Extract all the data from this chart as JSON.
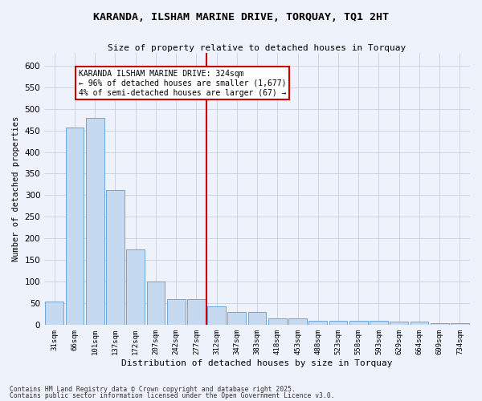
{
  "title": "KARANDA, ILSHAM MARINE DRIVE, TORQUAY, TQ1 2HT",
  "subtitle": "Size of property relative to detached houses in Torquay",
  "xlabel": "Distribution of detached houses by size in Torquay",
  "ylabel": "Number of detached properties",
  "categories": [
    "31sqm",
    "66sqm",
    "101sqm",
    "137sqm",
    "172sqm",
    "207sqm",
    "242sqm",
    "277sqm",
    "312sqm",
    "347sqm",
    "383sqm",
    "418sqm",
    "453sqm",
    "488sqm",
    "523sqm",
    "558sqm",
    "593sqm",
    "629sqm",
    "664sqm",
    "699sqm",
    "734sqm"
  ],
  "values": [
    54,
    456,
    479,
    312,
    175,
    100,
    59,
    59,
    42,
    30,
    30,
    15,
    15,
    9,
    9,
    9,
    9,
    8,
    8,
    3,
    3
  ],
  "bar_color": "#c5d9f1",
  "bar_edge_color": "#5b9bd5",
  "vline_x_index": 8,
  "vline_color": "#cc0000",
  "annotation_title": "KARANDA ILSHAM MARINE DRIVE: 324sqm",
  "annotation_line1": "← 96% of detached houses are smaller (1,677)",
  "annotation_line2": "4% of semi-detached houses are larger (67) →",
  "annotation_box_color": "#cc0000",
  "footnote1": "Contains HM Land Registry data © Crown copyright and database right 2025.",
  "footnote2": "Contains public sector information licensed under the Open Government Licence v3.0.",
  "bg_color": "#eef2fb",
  "ylim": [
    0,
    630
  ],
  "yticks": [
    0,
    50,
    100,
    150,
    200,
    250,
    300,
    350,
    400,
    450,
    500,
    550,
    600
  ]
}
